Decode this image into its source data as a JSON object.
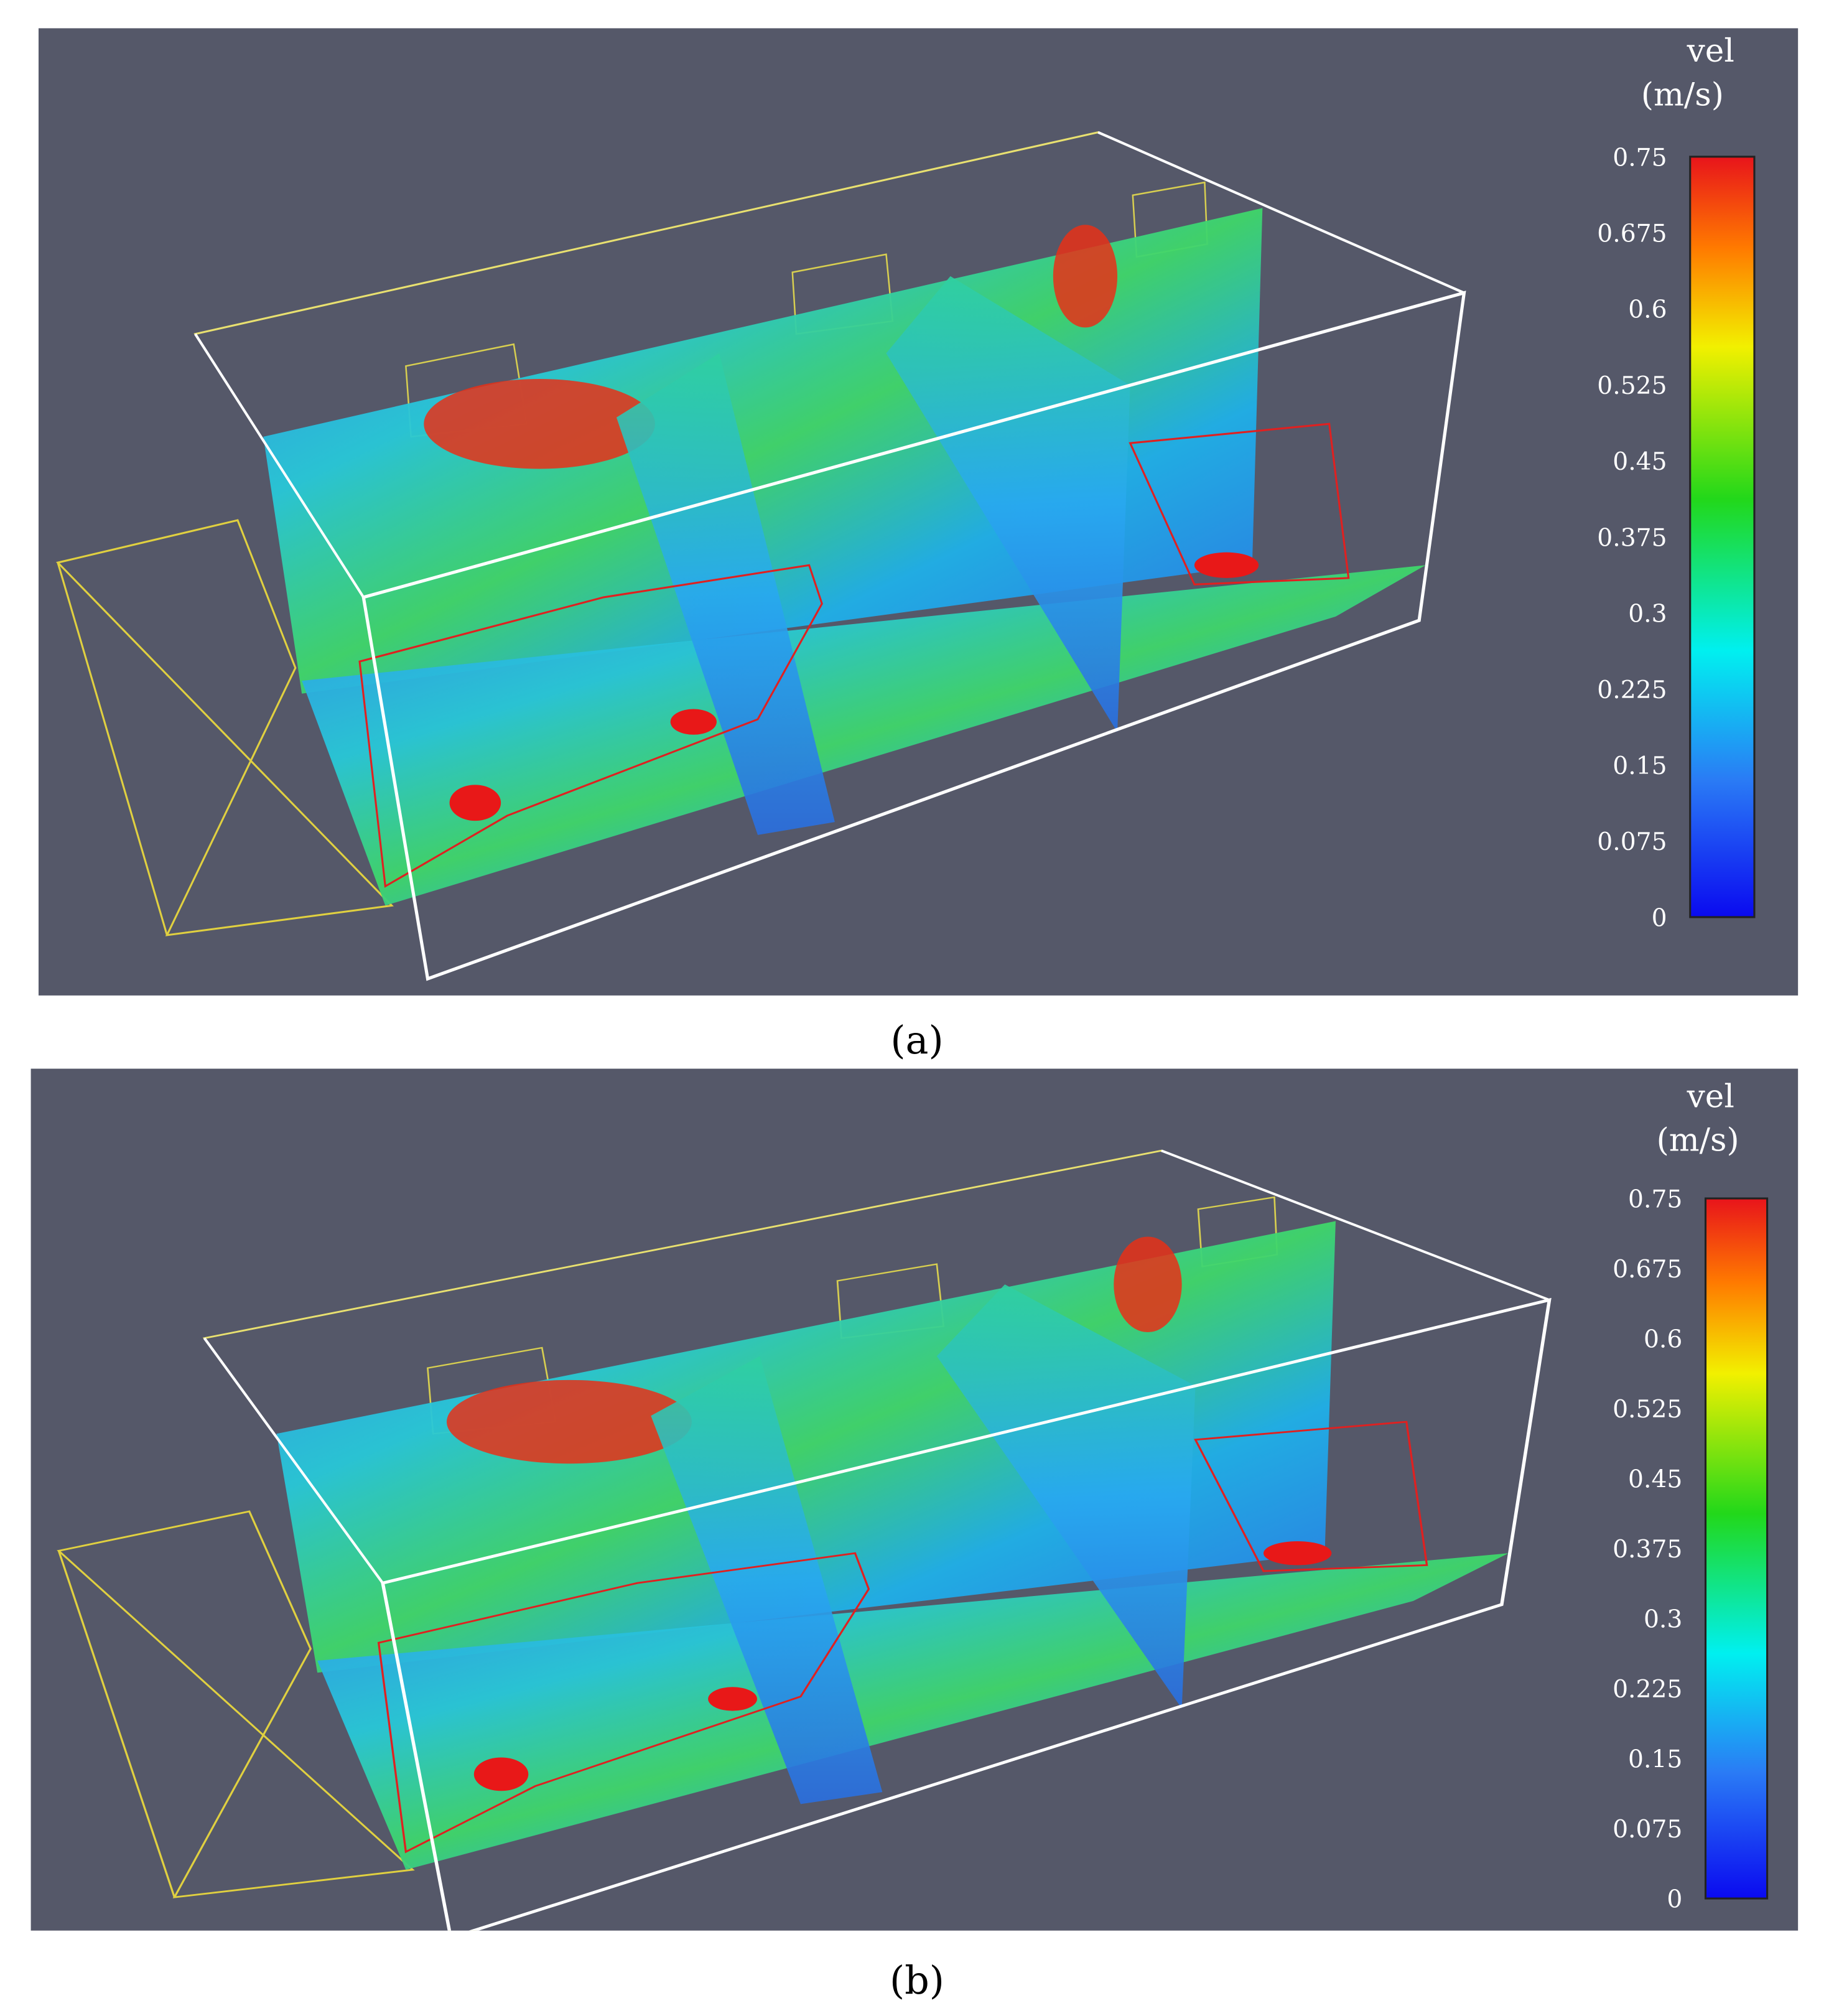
{
  "panels": [
    {
      "caption": "(a)",
      "colorbar": {
        "title": "vel",
        "unit": "(m/s)",
        "range": [
          0,
          0.75
        ],
        "ticks": [
          0.75,
          0.675,
          0.6,
          0.525,
          0.45,
          0.375,
          0.3,
          0.225,
          0.15,
          0.075,
          0
        ]
      }
    },
    {
      "caption": "(b)",
      "colorbar": {
        "title": "vel",
        "unit": "(m/s)",
        "range": [
          0,
          0.75
        ],
        "ticks": [
          0.75,
          0.675,
          0.6,
          0.525,
          0.45,
          0.375,
          0.3,
          0.225,
          0.15,
          0.075,
          0
        ]
      }
    }
  ]
}
